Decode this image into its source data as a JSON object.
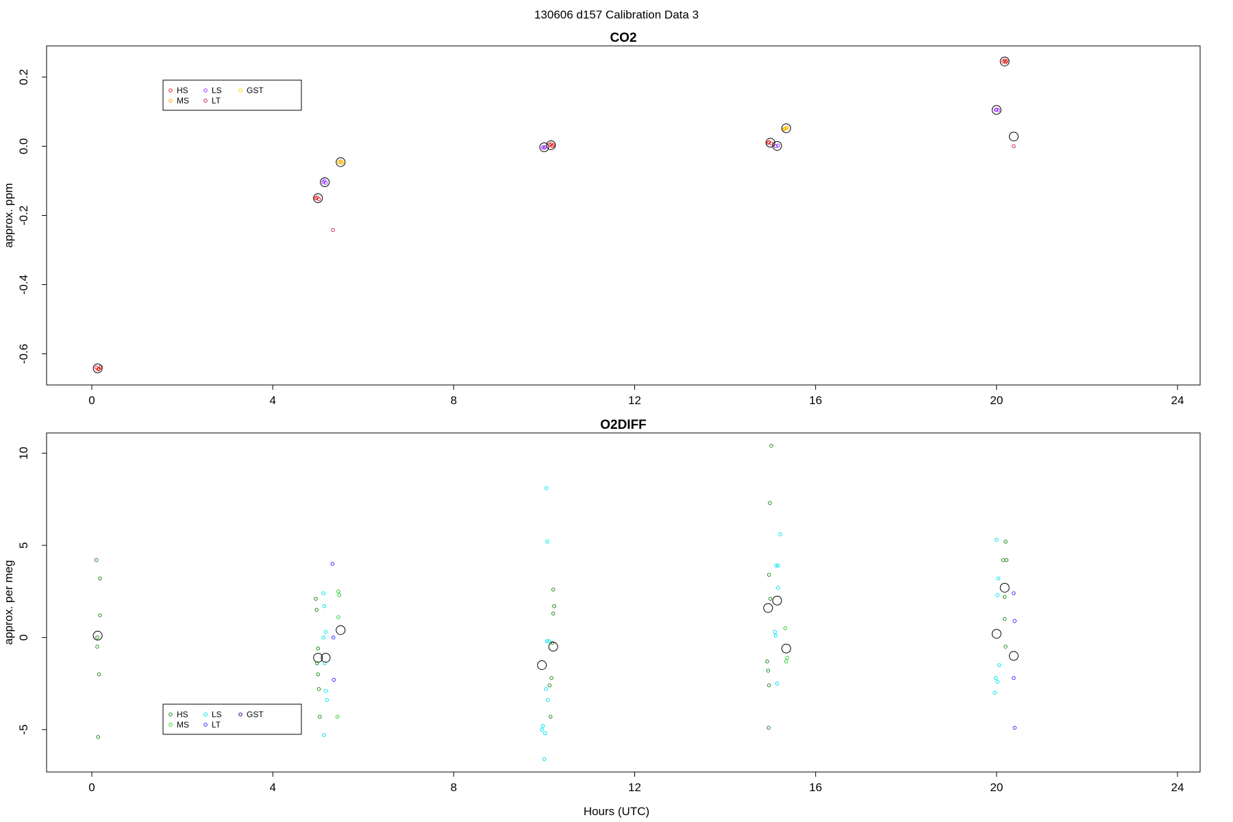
{
  "suptitle": "130606   d157   Calibration Data 3",
  "xlabel": "Hours (UTC)",
  "legend_labels": [
    "HS",
    "LS",
    "GST",
    "MS",
    "LT"
  ],
  "chart_data": [
    {
      "type": "scatter",
      "title": "CO2",
      "ylabel": "approx. ppm",
      "xlim": [
        -1.0,
        24.5
      ],
      "ylim": [
        -0.69,
        0.29
      ],
      "xticks": [
        0,
        4,
        8,
        12,
        16,
        20,
        24
      ],
      "yticks": [
        -0.6,
        -0.4,
        -0.2,
        0.0,
        0.2
      ],
      "ytick_labels": [
        "-0.6",
        "-0.4",
        "-0.2",
        "0.0",
        "0.2"
      ],
      "legend": [
        {
          "label": "HS",
          "color": "#e41a1c"
        },
        {
          "label": "LS",
          "color": "#9b30ff"
        },
        {
          "label": "GST",
          "color": "#ffd700"
        },
        {
          "label": "MS",
          "color": "#ffa500"
        },
        {
          "label": "LT",
          "color": "#cd2650"
        }
      ],
      "series": [
        {
          "name": "HS",
          "color": "#e41a1c",
          "points": [
            [
              0.1,
              -0.64
            ],
            [
              0.16,
              -0.643
            ],
            [
              0.2,
              -0.638
            ],
            [
              0.14,
              -0.645
            ],
            [
              4.98,
              -0.148
            ],
            [
              5.02,
              -0.153
            ],
            [
              4.95,
              -0.15
            ],
            [
              10.12,
              0.004
            ],
            [
              10.18,
              0.0
            ],
            [
              10.15,
              0.006
            ],
            [
              10.2,
              0.003
            ],
            [
              14.97,
              0.012
            ],
            [
              15.02,
              0.008
            ],
            [
              14.95,
              0.01
            ],
            [
              20.15,
              0.245
            ],
            [
              20.2,
              0.243
            ],
            [
              20.18,
              0.248
            ],
            [
              20.22,
              0.246
            ]
          ]
        },
        {
          "name": "MS",
          "color": "#ffa500",
          "points": [
            [
              5.47,
              -0.046
            ],
            [
              5.53,
              -0.048
            ],
            [
              5.5,
              -0.044
            ],
            [
              15.32,
              0.051
            ],
            [
              15.37,
              0.053
            ],
            [
              15.3,
              0.049
            ]
          ]
        },
        {
          "name": "LS",
          "color": "#9b30ff",
          "points": [
            [
              5.12,
              -0.104
            ],
            [
              5.17,
              -0.106
            ],
            [
              5.14,
              -0.1
            ],
            [
              9.97,
              -0.003
            ],
            [
              10.02,
              -0.002
            ],
            [
              10.0,
              -0.005
            ],
            [
              15.12,
              0.0
            ],
            [
              15.17,
              0.002
            ],
            [
              20.0,
              0.106
            ],
            [
              20.04,
              0.104
            ],
            [
              19.98,
              0.105
            ]
          ]
        },
        {
          "name": "LT",
          "color": "#cd2650",
          "points": [
            [
              5.33,
              -0.242
            ],
            [
              20.38,
              0.0
            ]
          ]
        },
        {
          "name": "GST",
          "color": "#ffd700",
          "points": [
            [
              5.52,
              -0.045
            ],
            [
              15.34,
              0.052
            ]
          ]
        }
      ],
      "means": [
        [
          0.13,
          -0.642
        ],
        [
          5.0,
          -0.15
        ],
        [
          5.15,
          -0.104
        ],
        [
          5.5,
          -0.046
        ],
        [
          10.0,
          -0.003
        ],
        [
          10.15,
          0.003
        ],
        [
          15.0,
          0.01
        ],
        [
          15.15,
          0.001
        ],
        [
          15.35,
          0.052
        ],
        [
          20.0,
          0.105
        ],
        [
          20.18,
          0.245
        ],
        [
          20.38,
          0.028
        ]
      ]
    },
    {
      "type": "scatter",
      "title": "O2DIFF",
      "ylabel": "approx. per meg",
      "xlim": [
        -1.0,
        24.5
      ],
      "ylim": [
        -7.3,
        11.1
      ],
      "xticks": [
        0,
        4,
        8,
        12,
        16,
        20,
        24
      ],
      "yticks": [
        -5,
        0,
        5,
        10
      ],
      "ytick_labels": [
        "-5",
        "0",
        "5",
        "10"
      ],
      "legend": [
        {
          "label": "HS",
          "color": "#1e8c1e"
        },
        {
          "label": "LS",
          "color": "#00e5ee"
        },
        {
          "label": "GST",
          "color": "#4b0082"
        },
        {
          "label": "MS",
          "color": "#32cd32"
        },
        {
          "label": "LT",
          "color": "#3333ff"
        }
      ],
      "series": [
        {
          "name": "HS",
          "color": "#1e8c1e",
          "points": [
            [
              0.1,
              4.2
            ],
            [
              0.18,
              3.2
            ],
            [
              0.18,
              1.2
            ],
            [
              0.12,
              0.0
            ],
            [
              0.12,
              -0.5
            ],
            [
              0.16,
              -2.0
            ],
            [
              0.14,
              -5.4
            ],
            [
              4.95,
              2.1
            ],
            [
              4.97,
              1.5
            ],
            [
              5.0,
              -0.6
            ],
            [
              4.98,
              -1.4
            ],
            [
              5.0,
              -2.0
            ],
            [
              5.02,
              -2.8
            ],
            [
              5.04,
              -4.3
            ],
            [
              10.2,
              2.6
            ],
            [
              10.22,
              1.7
            ],
            [
              10.2,
              1.3
            ],
            [
              10.18,
              -0.3
            ],
            [
              10.16,
              -2.2
            ],
            [
              10.12,
              -2.6
            ],
            [
              10.14,
              -4.3
            ],
            [
              14.97,
              3.4
            ],
            [
              14.99,
              7.3
            ],
            [
              15.02,
              10.4
            ],
            [
              15.0,
              2.1
            ],
            [
              14.93,
              -1.3
            ],
            [
              14.95,
              -1.8
            ],
            [
              14.97,
              -2.6
            ],
            [
              14.96,
              -4.9
            ],
            [
              20.15,
              4.2
            ],
            [
              20.2,
              5.2
            ],
            [
              20.22,
              4.2
            ],
            [
              20.18,
              2.2
            ],
            [
              20.18,
              1.0
            ],
            [
              20.2,
              -0.5
            ]
          ]
        },
        {
          "name": "MS",
          "color": "#32cd32",
          "points": [
            [
              5.45,
              2.5
            ],
            [
              5.47,
              2.3
            ],
            [
              5.45,
              1.1
            ],
            [
              5.43,
              -4.3
            ],
            [
              15.33,
              0.5
            ],
            [
              15.37,
              -1.1
            ],
            [
              15.35,
              -1.3
            ]
          ]
        },
        {
          "name": "LS",
          "color": "#00e5ee",
          "points": [
            [
              5.12,
              2.4
            ],
            [
              5.14,
              1.7
            ],
            [
              5.17,
              0.3
            ],
            [
              5.12,
              0.0
            ],
            [
              5.15,
              -1.4
            ],
            [
              5.17,
              -2.9
            ],
            [
              5.2,
              -3.4
            ],
            [
              5.13,
              -5.3
            ],
            [
              10.05,
              8.1
            ],
            [
              10.07,
              5.2
            ],
            [
              10.1,
              -0.2
            ],
            [
              10.06,
              -0.2
            ],
            [
              10.04,
              -2.8
            ],
            [
              10.08,
              -3.4
            ],
            [
              9.97,
              -4.8
            ],
            [
              9.95,
              -5.0
            ],
            [
              10.02,
              -5.2
            ],
            [
              10.0,
              -6.6
            ],
            [
              15.13,
              3.9
            ],
            [
              15.17,
              3.9
            ],
            [
              15.22,
              5.6
            ],
            [
              15.17,
              2.7
            ],
            [
              15.1,
              0.3
            ],
            [
              15.12,
              0.1
            ],
            [
              15.15,
              -2.5
            ],
            [
              20.0,
              5.3
            ],
            [
              20.04,
              3.2
            ],
            [
              20.02,
              2.3
            ],
            [
              19.98,
              -2.2
            ],
            [
              20.02,
              -2.4
            ],
            [
              20.06,
              -1.5
            ],
            [
              19.96,
              -3.0
            ]
          ]
        },
        {
          "name": "LT",
          "color": "#3333ff",
          "points": [
            [
              5.32,
              4.0
            ],
            [
              5.34,
              0.0
            ],
            [
              5.35,
              -2.3
            ],
            [
              20.38,
              2.4
            ],
            [
              20.4,
              0.9
            ],
            [
              20.38,
              -2.2
            ],
            [
              20.4,
              -4.9
            ]
          ]
        },
        {
          "name": "GST",
          "color": "#4b0082",
          "points": []
        }
      ],
      "means": [
        [
          0.13,
          0.1
        ],
        [
          5.0,
          -1.1
        ],
        [
          5.17,
          -1.1
        ],
        [
          5.5,
          0.4
        ],
        [
          9.95,
          -1.5
        ],
        [
          10.2,
          -0.5
        ],
        [
          14.95,
          1.6
        ],
        [
          15.15,
          2.0
        ],
        [
          15.35,
          -0.6
        ],
        [
          20.0,
          0.2
        ],
        [
          20.18,
          2.7
        ],
        [
          20.38,
          -1.0
        ]
      ]
    }
  ]
}
